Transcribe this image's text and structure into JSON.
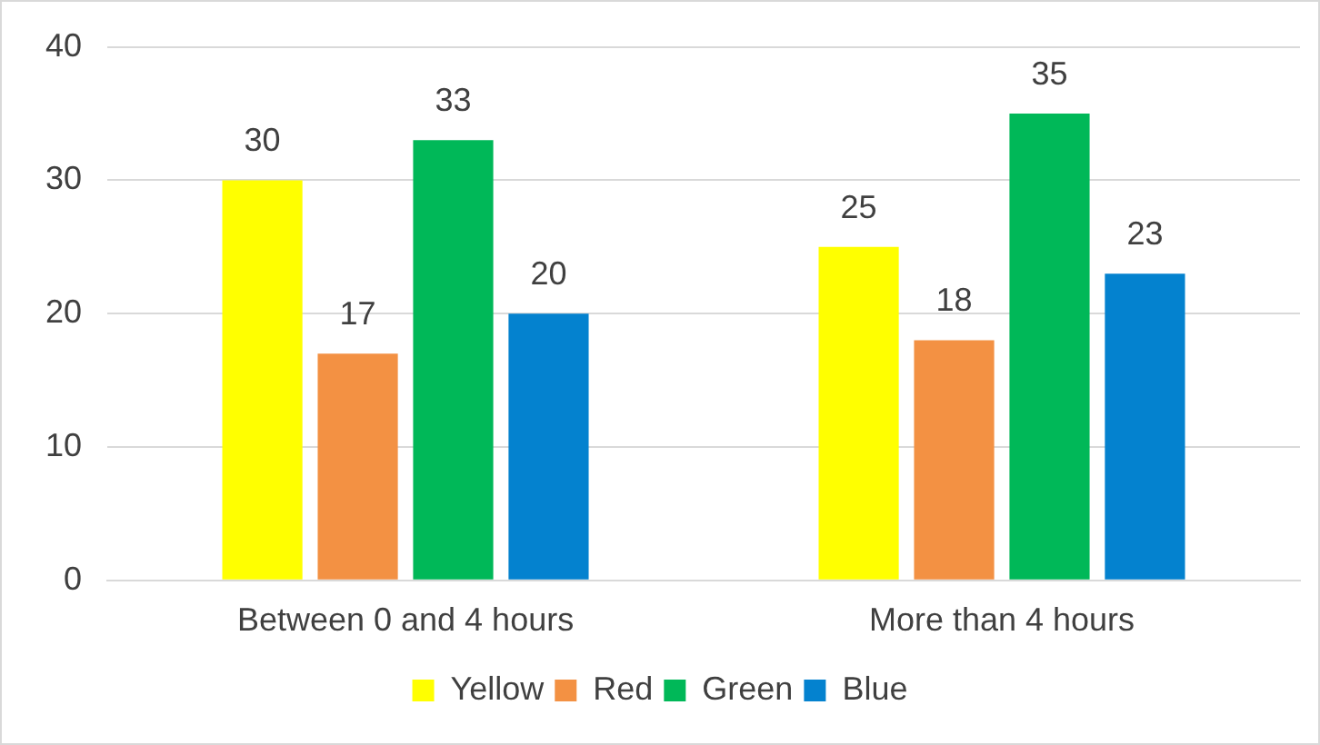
{
  "chart_data": {
    "type": "bar",
    "categories": [
      "Between 0 and 4 hours",
      "More than 4 hours"
    ],
    "series": [
      {
        "name": "Yellow",
        "color": "#ffff00",
        "values": [
          30,
          25
        ]
      },
      {
        "name": "Red",
        "color": "#f39143",
        "values": [
          17,
          18
        ]
      },
      {
        "name": "Green",
        "color": "#00b858",
        "values": [
          33,
          35
        ]
      },
      {
        "name": "Blue",
        "color": "#0482cf",
        "values": [
          20,
          23
        ]
      }
    ],
    "ylim": [
      0,
      40
    ],
    "yticks": [
      0,
      10,
      20,
      30,
      40
    ],
    "grid": "y",
    "legend": "bottom",
    "data_labels": true
  }
}
